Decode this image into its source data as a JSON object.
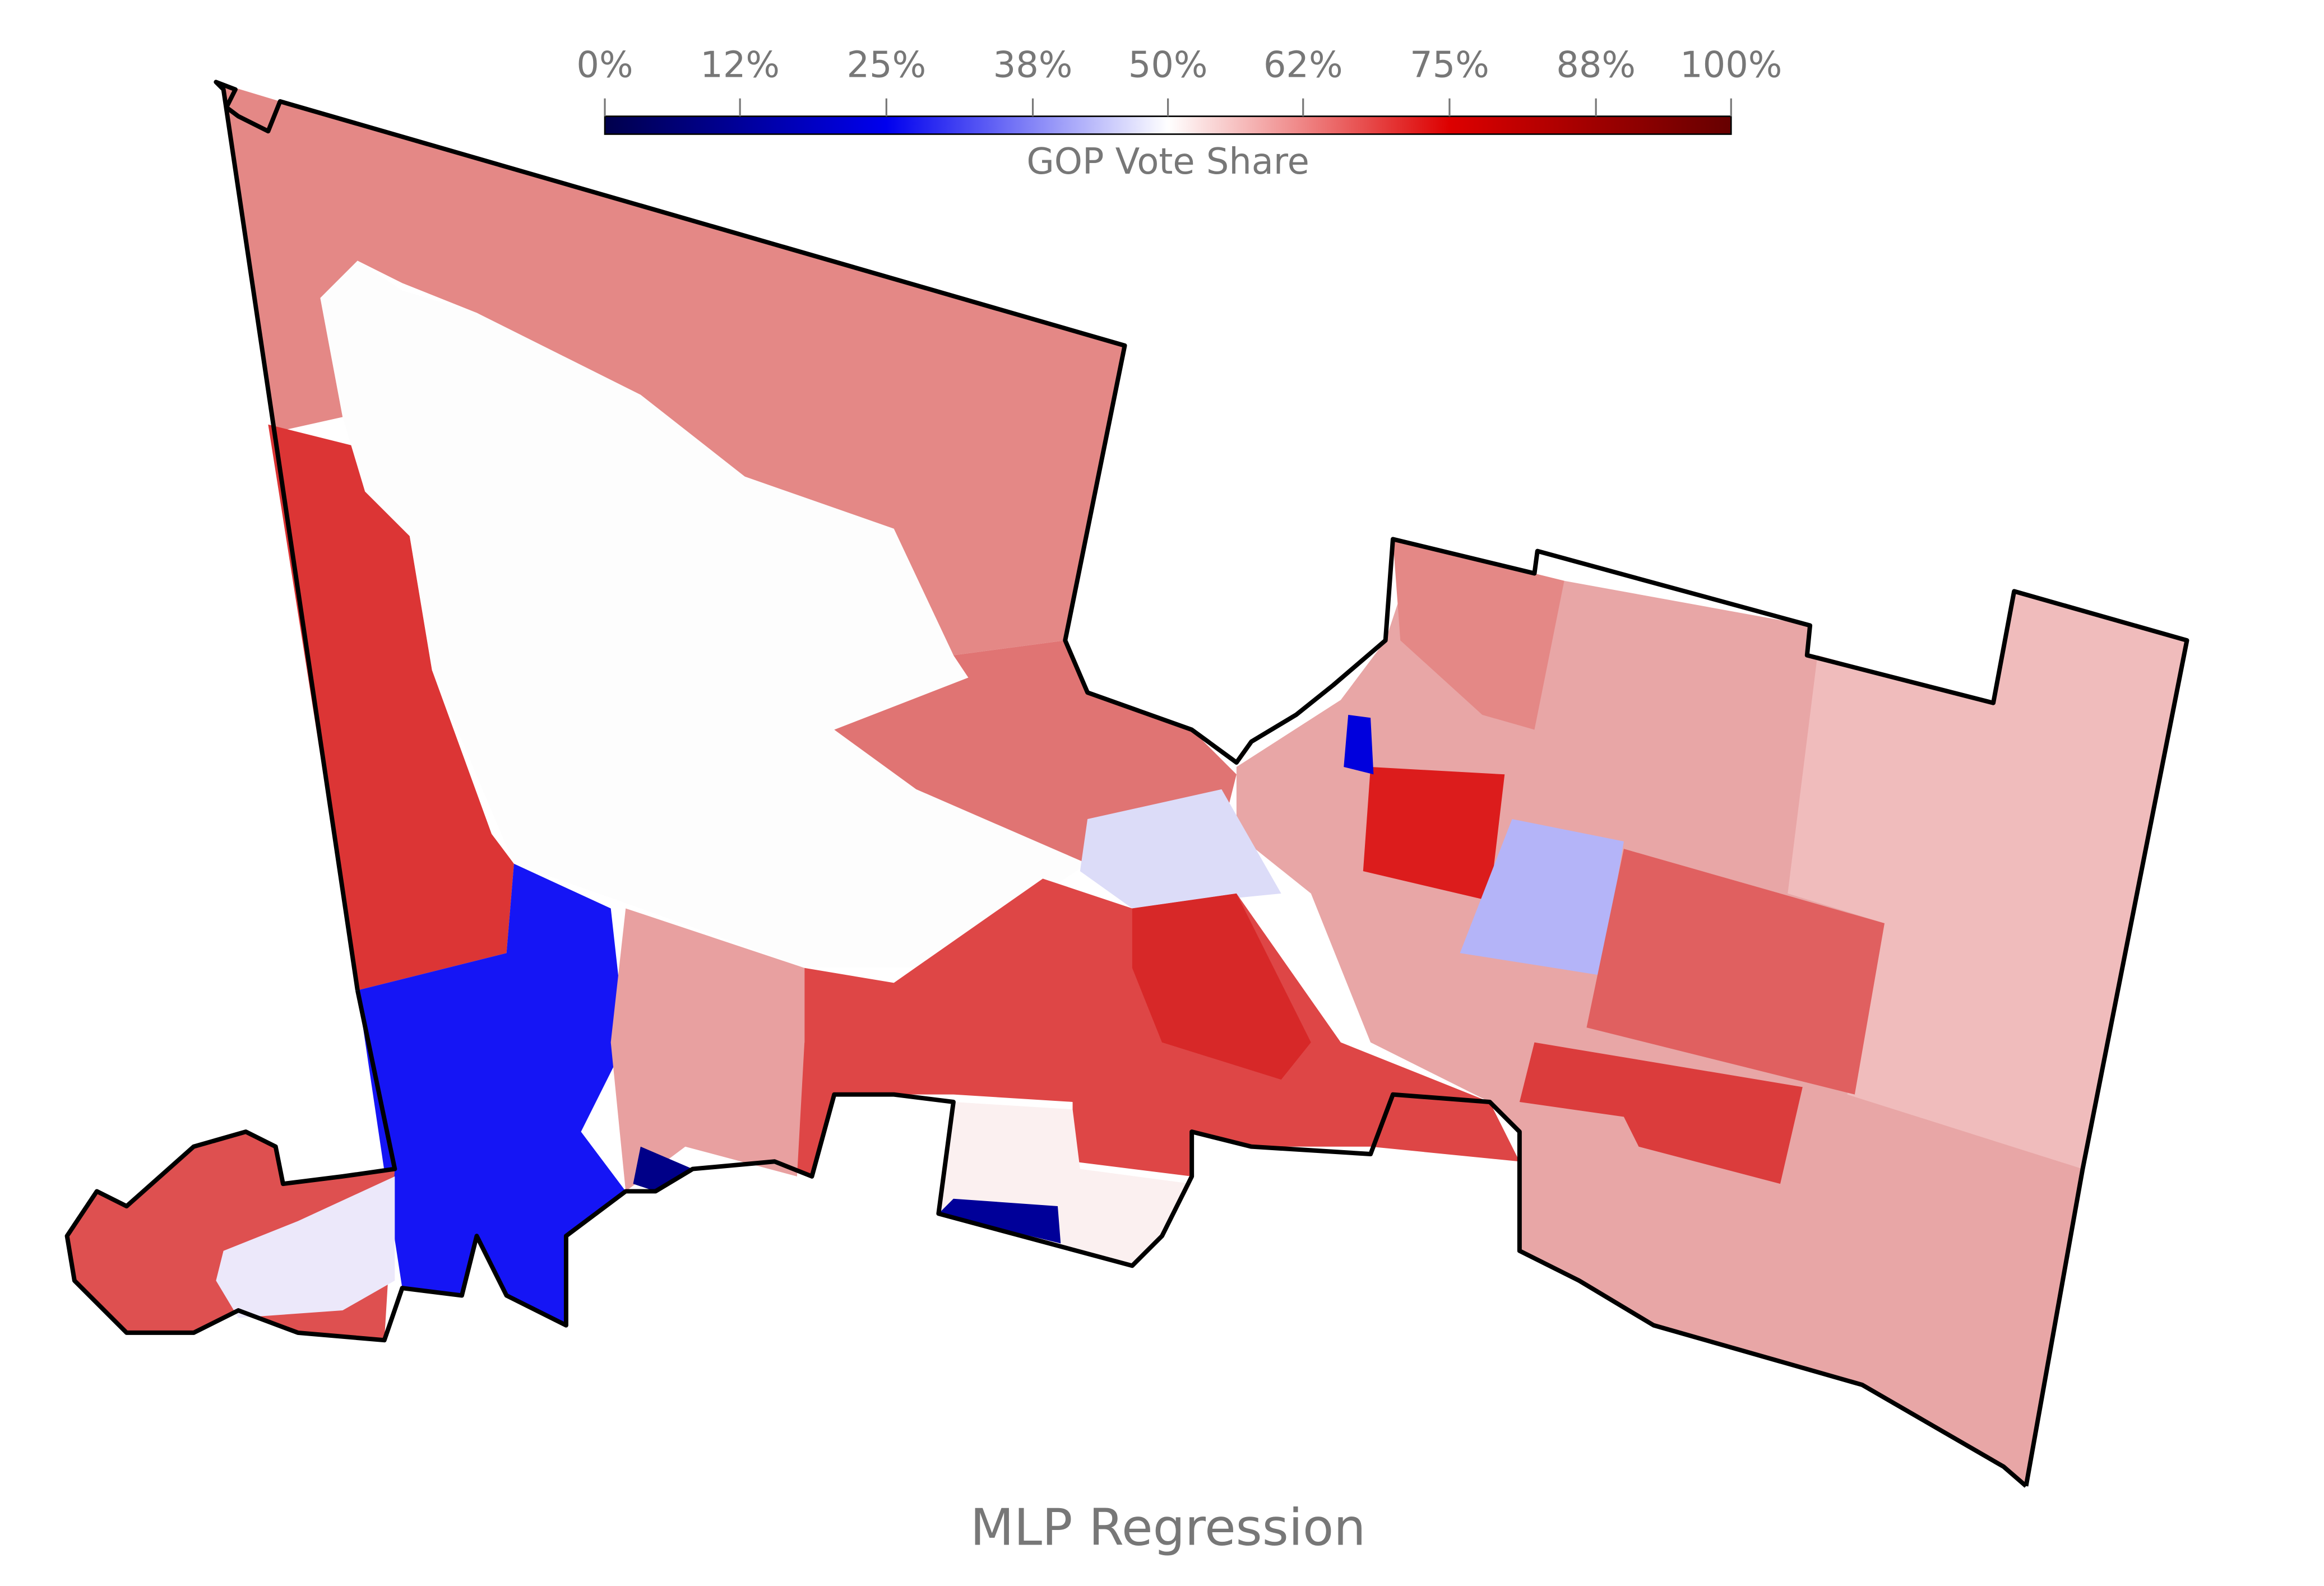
{
  "title": "MLP Regression",
  "colorbar": {
    "label": "GOP Vote Share",
    "lim": [
      0,
      100
    ],
    "ticks": [
      {
        "value": 0,
        "label": "0%"
      },
      {
        "value": 12,
        "label": "12%"
      },
      {
        "value": 25,
        "label": "25%"
      },
      {
        "value": 38,
        "label": "38%"
      },
      {
        "value": 50,
        "label": "50%"
      },
      {
        "value": 62,
        "label": "62%"
      },
      {
        "value": 75,
        "label": "75%"
      },
      {
        "value": 88,
        "label": "88%"
      },
      {
        "value": 100,
        "label": "100%"
      }
    ]
  }
}
